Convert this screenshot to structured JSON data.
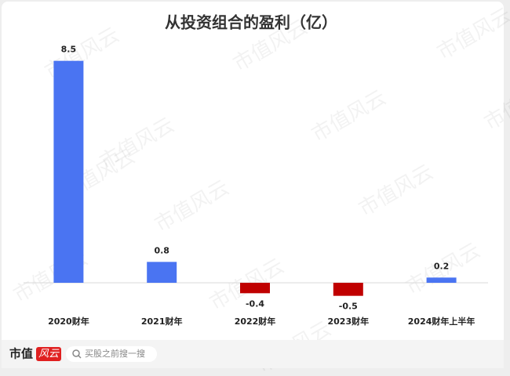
{
  "chart_data": {
    "type": "bar",
    "title": "从投资组合的盈利（亿）",
    "categories": [
      "2020财年",
      "2021财年",
      "2022财年",
      "2023财年",
      "2024财年上半年"
    ],
    "values": [
      8.5,
      0.8,
      -0.4,
      -0.5,
      0.2
    ],
    "colors": [
      "#4a74f2",
      "#4a74f2",
      "#c00000",
      "#c00000",
      "#4a74f2"
    ],
    "ylim": [
      -1.5,
      9
    ],
    "grid": false
  },
  "watermark": "市值风云",
  "footer": {
    "brand": "市值",
    "brand_logo": "风云",
    "search": "买股之前搜一搜"
  }
}
